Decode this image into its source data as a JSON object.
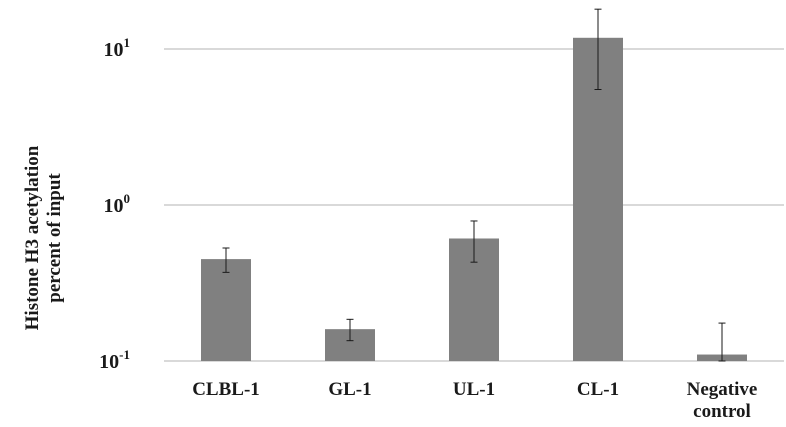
{
  "chart_data": {
    "type": "bar",
    "title": "",
    "xlabel": "",
    "ylabel": "Histone H3 acetylation percent of input",
    "ylabel_lines": [
      "Histone H3 acetylation",
      "percent of input"
    ],
    "yscale": "log",
    "ylim": [
      0.1,
      20
    ],
    "yticks": [
      {
        "value": 0.1,
        "base": "10",
        "exp": "-1"
      },
      {
        "value": 1,
        "base": "10",
        "exp": "0"
      },
      {
        "value": 10,
        "base": "10",
        "exp": "1"
      }
    ],
    "grid": true,
    "legend": "none",
    "categories": [
      "CLBL-1",
      "GL-1",
      "UL-1",
      "CL-1",
      "Negative control"
    ],
    "category_lines": [
      [
        "CLBL-1"
      ],
      [
        "GL-1"
      ],
      [
        "UL-1"
      ],
      [
        "CL-1"
      ],
      [
        "Negative",
        "control"
      ]
    ],
    "values": [
      0.45,
      0.16,
      0.61,
      11.8,
      0.11
    ],
    "error_low": [
      0.37,
      0.135,
      0.43,
      5.5,
      0.1
    ],
    "error_high": [
      0.53,
      0.185,
      0.79,
      18.0,
      0.175
    ],
    "colors": {
      "bar": "#808080",
      "grid": "#b3b3b3",
      "error": "#1a1a1a",
      "text": "#1a1a1a"
    }
  }
}
